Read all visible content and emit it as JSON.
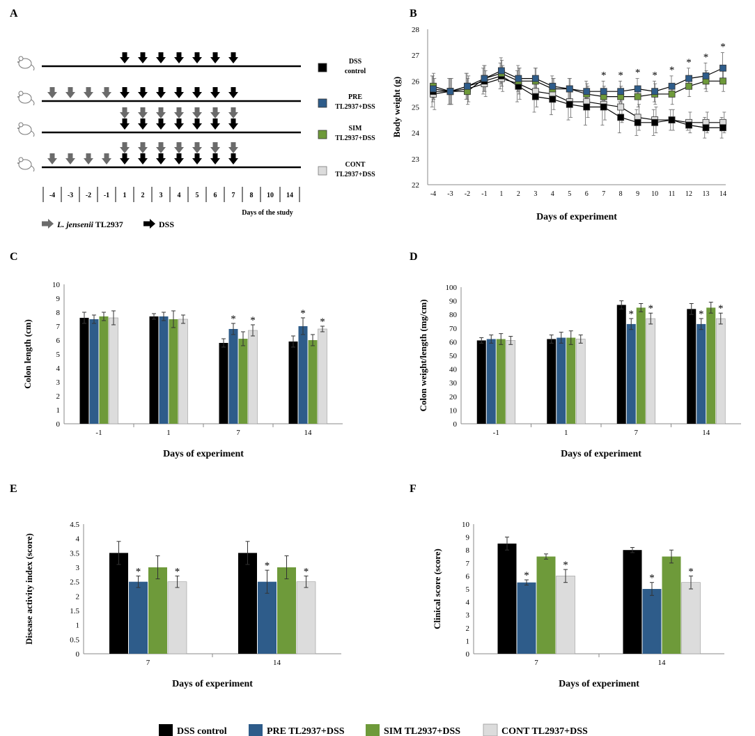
{
  "colors": {
    "dss": "#000000",
    "pre": "#2E5C8A",
    "sim": "#6E9A3A",
    "cont": "#DCDCDC",
    "arrow_probiotic": "#6B6B6B",
    "arrow_dss": "#000000"
  },
  "series_names": [
    "DSS control",
    "PRE TL2937+DSS",
    "SIM TL2937+DSS",
    "CONT TL2937+DSS"
  ],
  "panel_a": {
    "letter": "A",
    "legend": [
      {
        "line1": "DSS",
        "line2": "control"
      },
      {
        "line1": "PRE",
        "line2": "TL2937+DSS"
      },
      {
        "line1": "SIM",
        "line2": "TL2937+DSS"
      },
      {
        "line1": "CONT",
        "line2": "TL2937+DSS"
      }
    ],
    "day_labels": [
      "-4",
      "-3",
      "-2",
      "-1",
      "1",
      "2",
      "3",
      "4",
      "5",
      "6",
      "7",
      "8",
      "10",
      "14"
    ],
    "days_caption": "Days of the study",
    "protocol_rows": [
      {
        "probiotic_days": [],
        "dss_days": [
          "1",
          "2",
          "3",
          "4",
          "5",
          "6",
          "7"
        ],
        "stacked_days": []
      },
      {
        "probiotic_days": [
          "-4",
          "-3",
          "-2",
          "-1"
        ],
        "dss_days": [
          "1",
          "2",
          "3",
          "4",
          "5",
          "6",
          "7"
        ],
        "stacked_days": []
      },
      {
        "probiotic_days": [],
        "dss_days": [
          "1",
          "2",
          "3",
          "4",
          "5",
          "6",
          "7"
        ],
        "stacked_days": [
          "1",
          "2",
          "3",
          "4",
          "5",
          "6",
          "7"
        ]
      },
      {
        "probiotic_days": [
          "-4",
          "-3",
          "-2",
          "-1"
        ],
        "dss_days": [
          "1",
          "2",
          "3",
          "4",
          "5",
          "6",
          "7"
        ],
        "stacked_days": [
          "1",
          "2",
          "3",
          "4",
          "5",
          "6",
          "7"
        ]
      }
    ],
    "arrow_legend": {
      "probiotic_italic": "L. jensenii",
      "probiotic_rest": " TL2937",
      "dss": "DSS"
    }
  },
  "chart_data": [
    {
      "id": "B",
      "type": "line",
      "title": "",
      "xlabel": "Days of experiment",
      "ylabel": "Body weight (g)",
      "ylim": [
        22,
        28
      ],
      "yticks": [
        22,
        23,
        24,
        25,
        26,
        27,
        28
      ],
      "x": [
        "-4",
        "-3",
        "-2",
        "-1",
        "1",
        "2",
        "3",
        "4",
        "5",
        "6",
        "7",
        "8",
        "9",
        "10",
        "11",
        "12",
        "13",
        "14"
      ],
      "series": [
        {
          "name": "DSS control",
          "values": [
            25.6,
            25.6,
            25.8,
            26.0,
            26.2,
            25.8,
            25.4,
            25.3,
            25.1,
            25.0,
            25.0,
            24.6,
            24.4,
            24.4,
            24.5,
            24.3,
            24.2,
            24.2
          ],
          "err": [
            0.6,
            0.5,
            0.5,
            0.5,
            0.5,
            0.6,
            0.6,
            0.6,
            0.6,
            0.7,
            0.7,
            0.6,
            0.5,
            0.5,
            0.4,
            0.2,
            0.4,
            0.4
          ]
        },
        {
          "name": "PRE TL2937+DSS",
          "values": [
            25.7,
            25.6,
            25.8,
            26.1,
            26.4,
            26.1,
            26.1,
            25.8,
            25.7,
            25.6,
            25.6,
            25.6,
            25.7,
            25.6,
            25.8,
            26.1,
            26.2,
            26.5
          ],
          "err": [
            0.5,
            0.5,
            0.5,
            0.5,
            0.5,
            0.5,
            0.4,
            0.4,
            0.4,
            0.4,
            0.4,
            0.4,
            0.4,
            0.4,
            0.4,
            0.4,
            0.5,
            0.6
          ]
        },
        {
          "name": "SIM TL2937+DSS",
          "values": [
            25.8,
            25.6,
            25.6,
            26.1,
            26.3,
            26.0,
            26.0,
            25.7,
            25.7,
            25.5,
            25.4,
            25.4,
            25.4,
            25.5,
            25.5,
            25.8,
            26.0,
            26.0
          ],
          "err": [
            0.5,
            0.5,
            0.5,
            0.5,
            0.5,
            0.5,
            0.5,
            0.4,
            0.4,
            0.4,
            0.4,
            0.4,
            0.4,
            0.4,
            0.4,
            0.4,
            0.4,
            0.4
          ]
        },
        {
          "name": "CONT TL2937+DSS",
          "values": [
            25.5,
            25.6,
            25.7,
            25.9,
            26.1,
            25.9,
            25.6,
            25.5,
            25.2,
            25.2,
            25.1,
            25.0,
            24.6,
            24.5,
            24.5,
            24.4,
            24.4,
            24.4
          ],
          "err": [
            0.6,
            0.5,
            0.5,
            0.5,
            0.5,
            0.6,
            0.6,
            0.6,
            0.6,
            0.6,
            0.6,
            0.6,
            0.5,
            0.5,
            0.4,
            0.4,
            0.4,
            0.4
          ]
        }
      ],
      "sig_days": [
        "7",
        "8",
        "9",
        "10",
        "11",
        "12",
        "13",
        "14"
      ],
      "sig_marker": "*"
    },
    {
      "id": "C",
      "type": "bar",
      "title": "",
      "xlabel": "Days of experiment",
      "ylabel": "Colon length (cm)",
      "ylim": [
        0,
        10
      ],
      "yticks": [
        0,
        1,
        2,
        3,
        4,
        5,
        6,
        7,
        8,
        9,
        10
      ],
      "categories": [
        "-1",
        "1",
        "7",
        "14"
      ],
      "series": [
        {
          "name": "DSS control",
          "values": [
            7.6,
            7.7,
            5.8,
            5.9
          ],
          "err": [
            0.4,
            0.2,
            0.3,
            0.4
          ],
          "sig": [
            false,
            false,
            false,
            false
          ]
        },
        {
          "name": "PRE TL2937+DSS",
          "values": [
            7.5,
            7.7,
            6.8,
            7.0
          ],
          "err": [
            0.3,
            0.3,
            0.4,
            0.6
          ],
          "sig": [
            false,
            false,
            true,
            true
          ]
        },
        {
          "name": "SIM TL2937+DSS",
          "values": [
            7.7,
            7.5,
            6.1,
            6.0
          ],
          "err": [
            0.3,
            0.6,
            0.5,
            0.4
          ],
          "sig": [
            false,
            false,
            false,
            false
          ]
        },
        {
          "name": "CONT TL2937+DSS",
          "values": [
            7.6,
            7.5,
            6.7,
            6.8
          ],
          "err": [
            0.5,
            0.3,
            0.4,
            0.2
          ],
          "sig": [
            false,
            false,
            true,
            true
          ]
        }
      ],
      "sig_marker": "*"
    },
    {
      "id": "D",
      "type": "bar",
      "title": "",
      "xlabel": "Days of experiment",
      "ylabel": "Colon weight/length (mg/cm)",
      "ylim": [
        0,
        100
      ],
      "yticks": [
        0,
        10,
        20,
        30,
        40,
        50,
        60,
        70,
        80,
        90,
        100
      ],
      "categories": [
        "-1",
        "1",
        "7",
        "14"
      ],
      "series": [
        {
          "name": "DSS control",
          "values": [
            61,
            62,
            87,
            84
          ],
          "err": [
            2,
            3,
            3,
            4
          ],
          "sig": [
            false,
            false,
            false,
            false
          ]
        },
        {
          "name": "PRE TL2937+DSS",
          "values": [
            62,
            63,
            73,
            73
          ],
          "err": [
            3,
            4,
            4,
            4
          ],
          "sig": [
            false,
            false,
            true,
            true
          ]
        },
        {
          "name": "SIM TL2937+DSS",
          "values": [
            62,
            63,
            85,
            85
          ],
          "err": [
            4,
            5,
            3,
            4
          ],
          "sig": [
            false,
            false,
            false,
            false
          ]
        },
        {
          "name": "CONT TL2937+DSS",
          "values": [
            61,
            62,
            77,
            77
          ],
          "err": [
            3,
            3,
            4,
            4
          ],
          "sig": [
            false,
            false,
            true,
            true
          ]
        }
      ],
      "sig_marker": "*"
    },
    {
      "id": "E",
      "type": "bar",
      "title": "",
      "xlabel": "Days of experiment",
      "ylabel": "Disease activity index (score)",
      "ylim": [
        0,
        4.5
      ],
      "yticks": [
        0,
        0.5,
        1,
        1.5,
        2,
        2.5,
        3,
        3.5,
        4,
        4.5
      ],
      "categories": [
        "7",
        "14"
      ],
      "series": [
        {
          "name": "DSS control",
          "values": [
            3.5,
            3.5
          ],
          "err": [
            0.4,
            0.4
          ],
          "sig": [
            false,
            false
          ]
        },
        {
          "name": "PRE TL2937+DSS",
          "values": [
            2.5,
            2.5
          ],
          "err": [
            0.2,
            0.4
          ],
          "sig": [
            true,
            true
          ]
        },
        {
          "name": "SIM TL2937+DSS",
          "values": [
            3.0,
            3.0
          ],
          "err": [
            0.4,
            0.4
          ],
          "sig": [
            false,
            false
          ]
        },
        {
          "name": "CONT TL2937+DSS",
          "values": [
            2.5,
            2.5
          ],
          "err": [
            0.2,
            0.2
          ],
          "sig": [
            true,
            true
          ]
        }
      ],
      "sig_marker": "*"
    },
    {
      "id": "F",
      "type": "bar",
      "title": "",
      "xlabel": "Days of experiment",
      "ylabel": "Clinical score (score)",
      "ylim": [
        0,
        10
      ],
      "yticks": [
        0,
        1,
        2,
        3,
        4,
        5,
        6,
        7,
        8,
        9,
        10
      ],
      "categories": [
        "7",
        "14"
      ],
      "series": [
        {
          "name": "DSS control",
          "values": [
            8.5,
            8.0
          ],
          "err": [
            0.5,
            0.2
          ],
          "sig": [
            false,
            false
          ]
        },
        {
          "name": "PRE TL2937+DSS",
          "values": [
            5.5,
            5.0
          ],
          "err": [
            0.2,
            0.5
          ],
          "sig": [
            true,
            true
          ]
        },
        {
          "name": "SIM TL2937+DSS",
          "values": [
            7.5,
            7.5
          ],
          "err": [
            0.2,
            0.5
          ],
          "sig": [
            false,
            false
          ]
        },
        {
          "name": "CONT TL2937+DSS",
          "values": [
            6.0,
            5.5
          ],
          "err": [
            0.5,
            0.5
          ],
          "sig": [
            true,
            true
          ]
        }
      ],
      "sig_marker": "*"
    }
  ]
}
